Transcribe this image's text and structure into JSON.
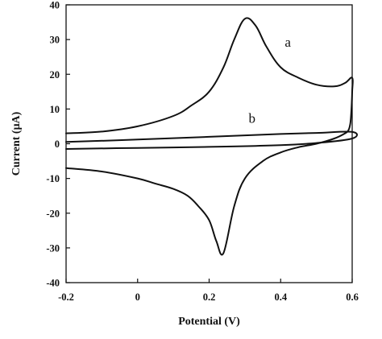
{
  "chart_data": {
    "type": "line",
    "title": "",
    "xlabel": "Potential (V)",
    "ylabel": "Current (μA)",
    "xlim": [
      -0.2,
      0.6
    ],
    "ylim": [
      -40,
      40
    ],
    "xticks": [
      -0.2,
      0,
      0.2,
      0.4,
      0.6
    ],
    "yticks": [
      -40,
      -30,
      -20,
      -10,
      0,
      10,
      20,
      30,
      40
    ],
    "xtick_labels": [
      "-0.2",
      "0",
      "0.2",
      "0.4",
      "0.6"
    ],
    "ytick_labels": [
      "-40",
      "-30",
      "-20",
      "-10",
      "0",
      "10",
      "20",
      "30",
      "40"
    ],
    "grid": false,
    "legend": "none",
    "series": [
      {
        "name": "a",
        "color": "#111111",
        "x": [
          -0.2,
          -0.1,
          0,
          0.1,
          0.15,
          0.2,
          0.24,
          0.27,
          0.3,
          0.33,
          0.36,
          0.4,
          0.45,
          0.5,
          0.55,
          0.58,
          0.6,
          0.6,
          0.598,
          0.595,
          0.59,
          0.58,
          0.55,
          0.5,
          0.45,
          0.4,
          0.35,
          0.3,
          0.27,
          0.24,
          0.22,
          0.2,
          0.17,
          0.14,
          0.1,
          0.05,
          0,
          -0.1,
          -0.2
        ],
        "y": [
          3,
          3.5,
          5,
          8,
          11,
          15,
          22,
          30,
          36,
          34,
          28,
          22,
          19,
          17,
          16.5,
          17.5,
          19,
          15,
          10,
          6,
          4,
          3,
          1.5,
          0,
          -1,
          -2.5,
          -5,
          -10,
          -18,
          -31.5,
          -28,
          -22,
          -18,
          -15,
          -13,
          -11.5,
          -10,
          -8,
          -7
        ]
      },
      {
        "name": "b",
        "color": "#111111",
        "x": [
          -0.2,
          0,
          0.2,
          0.4,
          0.5,
          0.6,
          0.6,
          0.5,
          0.4,
          0.2,
          0,
          -0.2
        ],
        "y": [
          0.5,
          1.2,
          2,
          2.8,
          3.1,
          3.4,
          1.5,
          0.2,
          -0.4,
          -0.9,
          -1.2,
          -1.5
        ]
      }
    ],
    "annotations": [
      {
        "text": "a",
        "x": 0.42,
        "y": 28
      },
      {
        "text": "b",
        "x": 0.32,
        "y": 6
      }
    ]
  }
}
